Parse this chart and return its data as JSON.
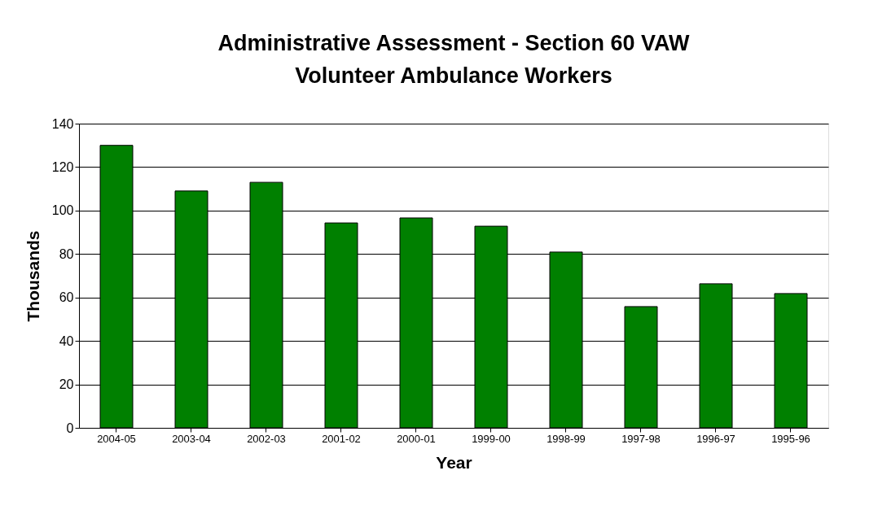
{
  "chart_data": {
    "type": "bar",
    "title": [
      "Administrative Assessment - Section 60 VAW",
      "Volunteer Ambulance Workers"
    ],
    "xlabel": "Year",
    "ylabel": "Thousands",
    "categories": [
      "2004-05",
      "2003-04",
      "2002-03",
      "2001-02",
      "2000-01",
      "1999-00",
      "1998-99",
      "1997-98",
      "1996-97",
      "1995-96"
    ],
    "values": [
      130,
      109,
      113,
      94.3,
      96.6,
      92.8,
      80.9,
      55.8,
      66.3,
      61.8
    ],
    "color": "#008000",
    "ylim": [
      0,
      140
    ],
    "yticks": [
      0,
      20,
      40,
      60,
      80,
      100,
      120,
      140
    ],
    "grid": "y"
  }
}
